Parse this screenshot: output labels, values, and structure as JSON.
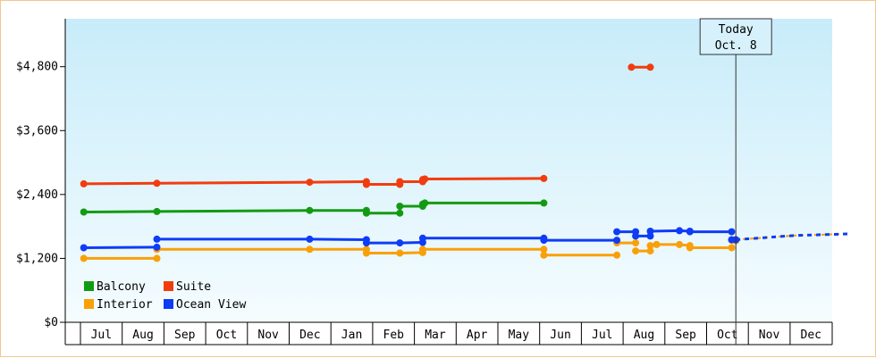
{
  "chart_data": {
    "type": "line",
    "y_axis": {
      "ticks": [
        0,
        1200,
        2400,
        3600,
        4800
      ],
      "tick_labels": [
        "$0",
        "$1,200",
        "$2,400",
        "$3,600",
        "$4,800"
      ],
      "ylim": [
        0,
        5700
      ]
    },
    "x_axis": {
      "months": [
        "Jul",
        "Aug",
        "Sep",
        "Oct",
        "Nov",
        "Dec",
        "Jan",
        "Feb",
        "Mar",
        "Apr",
        "May",
        "Jun",
        "Jul",
        "Aug",
        "Sep",
        "Oct",
        "Nov",
        "Dec"
      ]
    },
    "today_marker": {
      "line1": "Today",
      "line2": "Oct. 8",
      "x": 15.2
    },
    "legend": [
      {
        "name": "Balcony",
        "color": "#139a13"
      },
      {
        "name": "Suite",
        "color": "#f23c0f"
      },
      {
        "name": "Interior",
        "color": "#f9a009"
      },
      {
        "name": "Ocean View",
        "color": "#0f3cf5"
      }
    ],
    "series": [
      {
        "name": "Balcony",
        "color": "#139a13",
        "segments": [
          [
            [
              -0.42,
              2070
            ],
            [
              1.33,
              2080
            ],
            [
              4.99,
              2100
            ],
            [
              6.35,
              2100
            ]
          ],
          [
            [
              6.35,
              2050
            ],
            [
              7.15,
              2050
            ]
          ],
          [
            [
              7.15,
              2180
            ],
            [
              7.7,
              2180
            ]
          ],
          [
            [
              7.7,
              2220
            ],
            [
              7.75,
              2240
            ],
            [
              10.6,
              2240
            ]
          ]
        ]
      },
      {
        "name": "Suite",
        "color": "#f23c0f",
        "segments": [
          [
            [
              -0.42,
              2600
            ],
            [
              1.33,
              2610
            ],
            [
              4.99,
              2630
            ],
            [
              6.35,
              2640
            ]
          ],
          [
            [
              6.35,
              2590
            ],
            [
              7.15,
              2590
            ]
          ],
          [
            [
              7.15,
              2640
            ],
            [
              7.7,
              2640
            ]
          ],
          [
            [
              7.7,
              2680
            ],
            [
              7.75,
              2690
            ],
            [
              10.6,
              2700
            ]
          ],
          [
            [
              12.7,
              4790
            ],
            [
              13.15,
              4790
            ]
          ]
        ]
      },
      {
        "name": "Interior",
        "color": "#f9a009",
        "segments": [
          [
            [
              -0.42,
              1200
            ],
            [
              1.33,
              1200
            ]
          ],
          [
            [
              1.33,
              1370
            ],
            [
              4.99,
              1370
            ],
            [
              6.35,
              1370
            ]
          ],
          [
            [
              6.35,
              1300
            ],
            [
              7.15,
              1300
            ],
            [
              7.7,
              1310
            ]
          ],
          [
            [
              7.7,
              1370
            ],
            [
              10.6,
              1370
            ]
          ],
          [
            [
              10.6,
              1260
            ],
            [
              12.35,
              1260
            ]
          ],
          [
            [
              12.35,
              1490
            ],
            [
              12.8,
              1490
            ]
          ],
          [
            [
              12.8,
              1340
            ],
            [
              13.15,
              1340
            ]
          ],
          [
            [
              13.15,
              1440
            ],
            [
              13.3,
              1460
            ],
            [
              13.85,
              1460
            ],
            [
              14.1,
              1440
            ]
          ],
          [
            [
              14.1,
              1400
            ],
            [
              15.1,
              1400
            ]
          ],
          [
            [
              15.1,
              1540
            ],
            [
              15.2,
              1530
            ]
          ]
        ]
      },
      {
        "name": "Ocean View",
        "color": "#0f3cf5",
        "segments": [
          [
            [
              -0.42,
              1400
            ],
            [
              1.33,
              1410
            ]
          ],
          [
            [
              1.33,
              1560
            ],
            [
              4.99,
              1560
            ],
            [
              6.35,
              1550
            ]
          ],
          [
            [
              6.35,
              1490
            ],
            [
              7.15,
              1490
            ],
            [
              7.7,
              1500
            ]
          ],
          [
            [
              7.7,
              1580
            ],
            [
              10.6,
              1580
            ]
          ],
          [
            [
              10.6,
              1540
            ],
            [
              12.35,
              1540
            ]
          ],
          [
            [
              12.35,
              1700
            ],
            [
              12.8,
              1700
            ]
          ],
          [
            [
              12.8,
              1620
            ],
            [
              13.15,
              1620
            ]
          ],
          [
            [
              13.15,
              1710
            ],
            [
              13.85,
              1720
            ],
            [
              14.1,
              1710
            ]
          ],
          [
            [
              14.1,
              1700
            ],
            [
              15.1,
              1700
            ]
          ],
          [
            [
              15.1,
              1550
            ],
            [
              15.2,
              1550
            ]
          ]
        ]
      }
    ],
    "projection": [
      [
        15.2,
        1550
      ],
      [
        16.6,
        1630
      ],
      [
        17.9,
        1660
      ]
    ]
  }
}
